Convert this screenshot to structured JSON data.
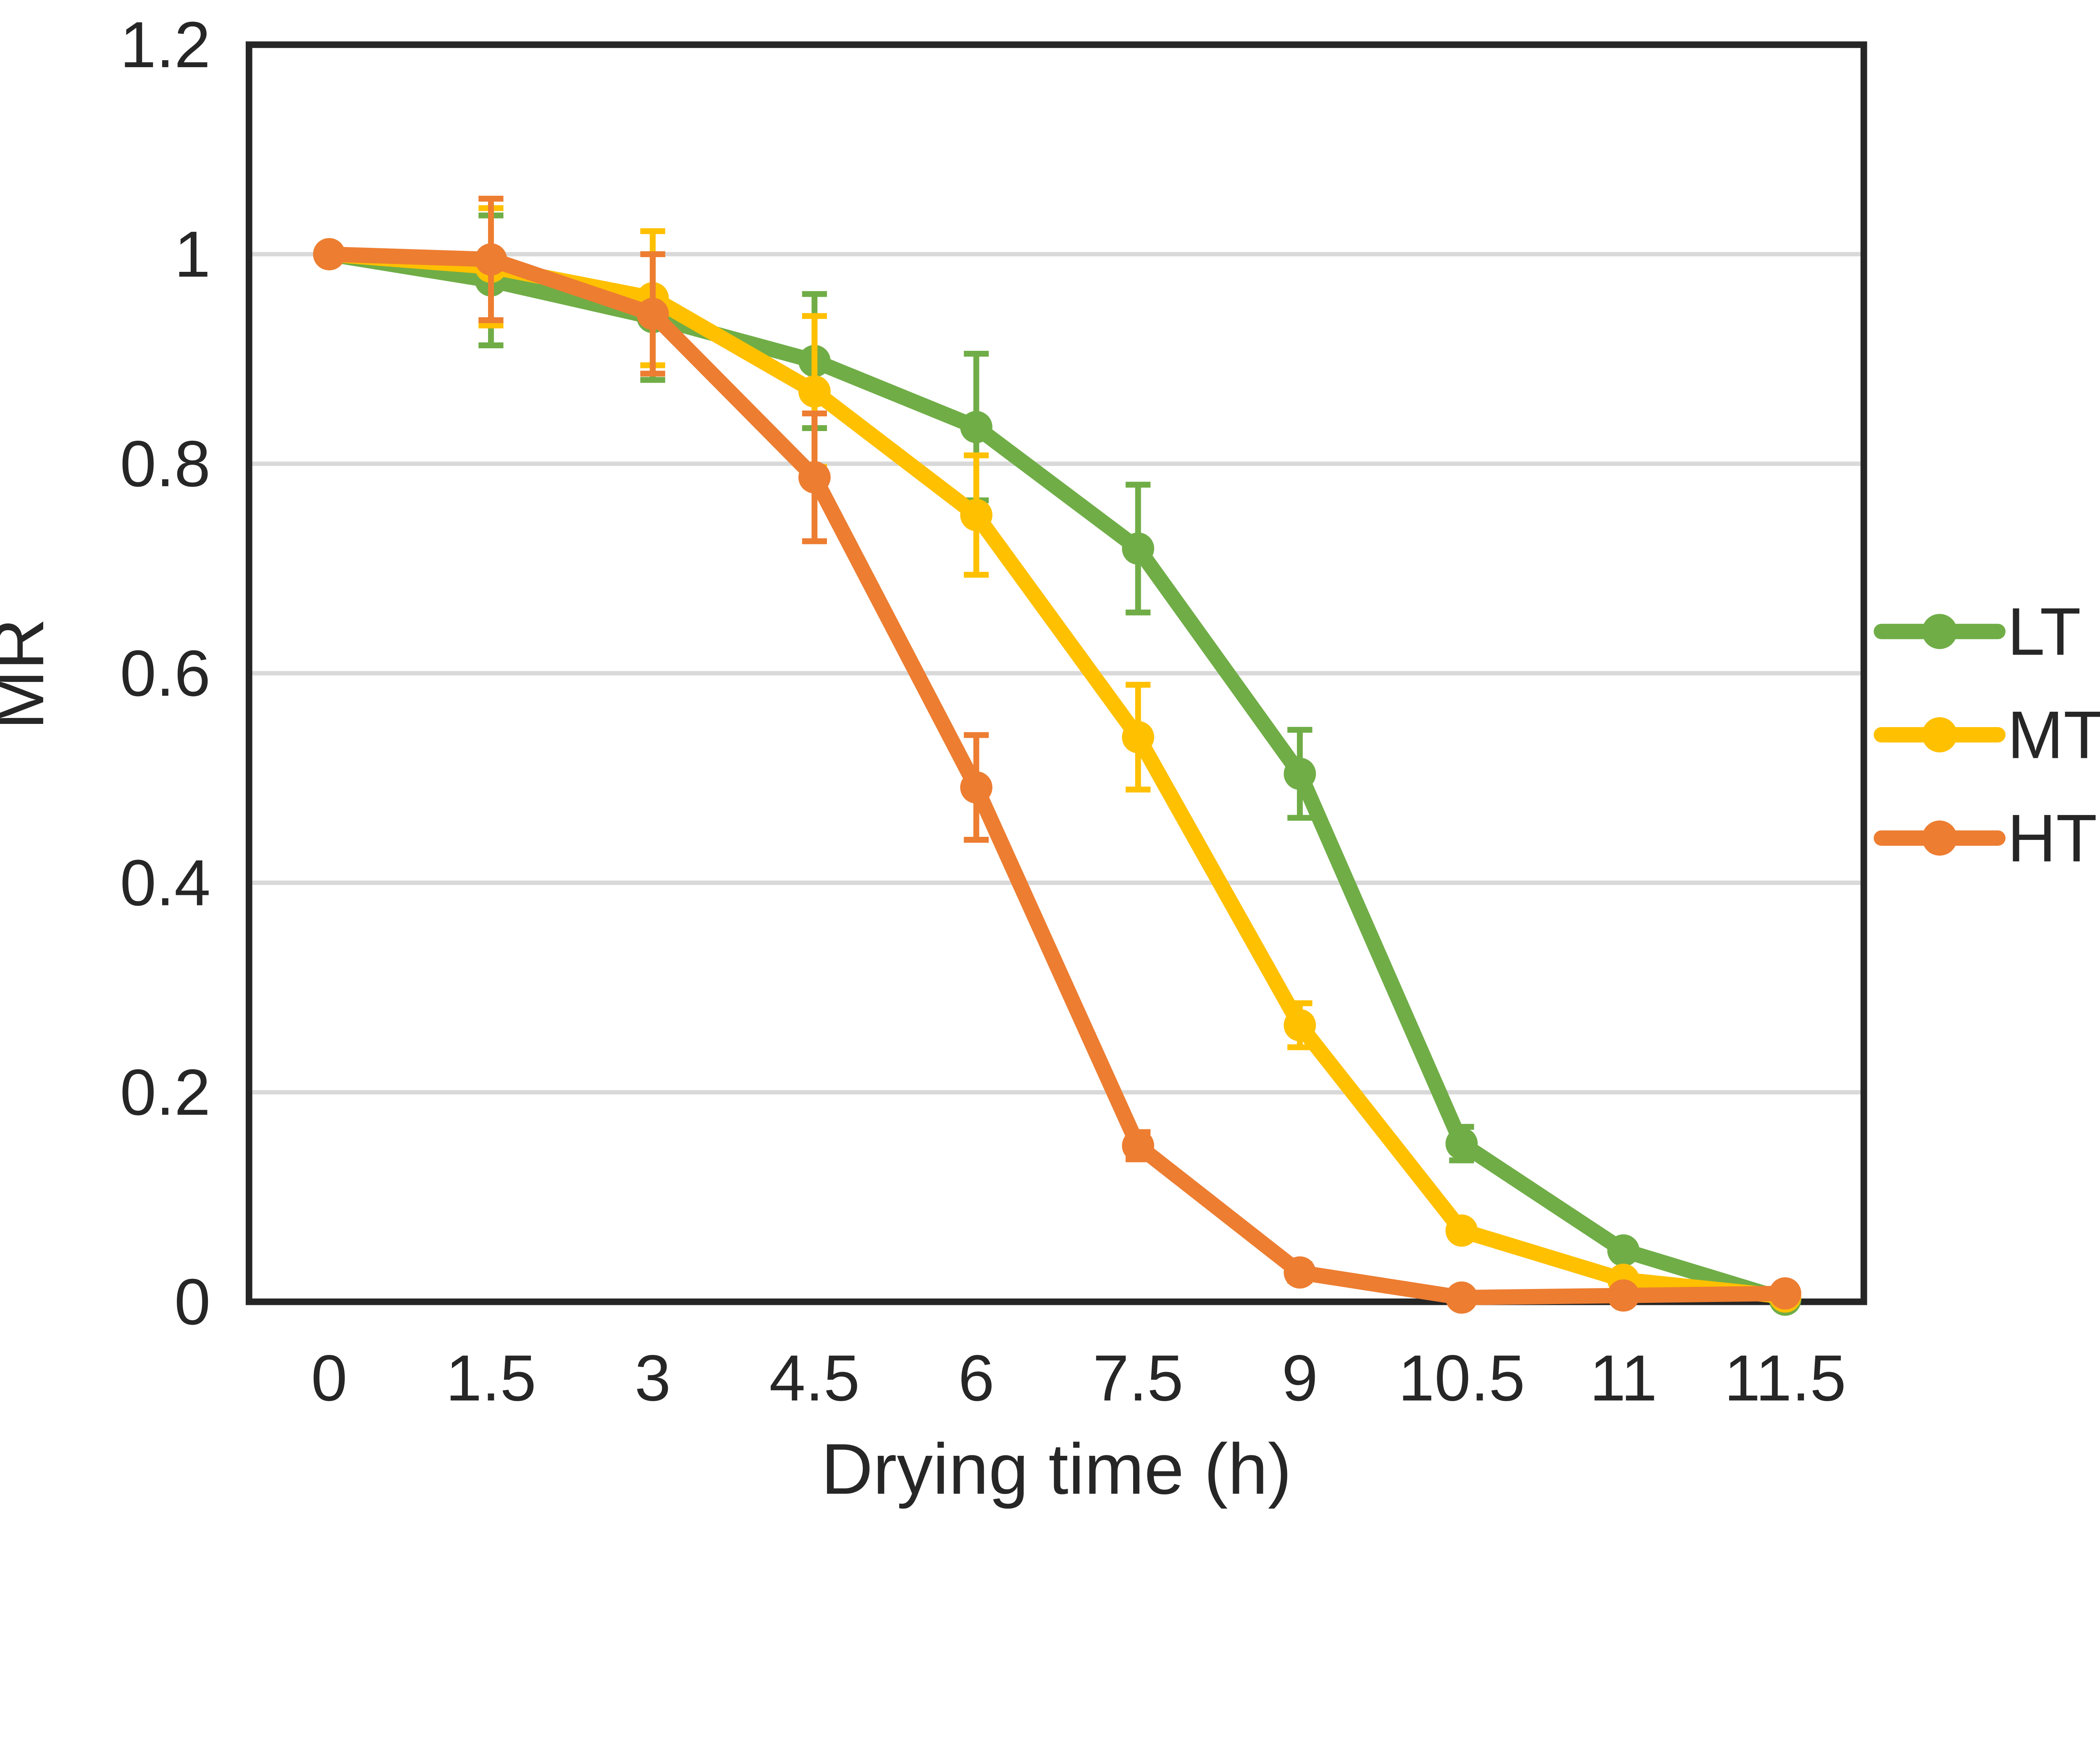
{
  "chart_data": {
    "type": "line",
    "title": "",
    "xlabel": "Drying time (h)",
    "ylabel": "MR",
    "categories": [
      "0",
      "1.5",
      "3",
      "4.5",
      "6",
      "7.5",
      "9",
      "10.5",
      "11",
      "11.5"
    ],
    "x_axis_type": "categorical-equal-spacing",
    "ylim": [
      0,
      1.2
    ],
    "y_ticks": [
      {
        "label": "0",
        "value": 0
      },
      {
        "label": "0.2",
        "value": 0.2
      },
      {
        "label": "0.4",
        "value": 0.4
      },
      {
        "label": "0.6",
        "value": 0.6
      },
      {
        "label": "0.8",
        "value": 0.8
      },
      {
        "label": "1",
        "value": 1.0
      },
      {
        "label": "1.2",
        "value": 1.2
      }
    ],
    "gridline_values": [
      0.2,
      0.4,
      0.6,
      0.8,
      1.0
    ],
    "grid_on": true,
    "grid_color": "#d9d9d9",
    "axis_color": "#262626",
    "series": [
      {
        "name": "LT",
        "color": "#70AD47",
        "marker": "circle",
        "values": [
          1.0,
          0.975,
          0.94,
          0.898,
          0.835,
          0.719,
          0.504,
          0.151,
          0.049,
          0.002
        ],
        "errors": [
          0.004,
          0.062,
          0.06,
          0.064,
          0.07,
          0.061,
          0.042,
          0.016,
          0.006,
          0.003
        ]
      },
      {
        "name": "MT",
        "color": "#FFC000",
        "marker": "circle",
        "values": [
          1.0,
          0.988,
          0.958,
          0.869,
          0.751,
          0.539,
          0.264,
          0.068,
          0.021,
          0.005
        ],
        "errors": [
          0.004,
          0.056,
          0.064,
          0.072,
          0.057,
          0.05,
          0.021,
          0.006,
          0.005,
          0.003
        ]
      },
      {
        "name": "HT",
        "color": "#ED7D31",
        "marker": "circle",
        "values": [
          1.0,
          0.995,
          0.943,
          0.787,
          0.491,
          0.149,
          0.028,
          0.004,
          0.006,
          0.008
        ],
        "errors": [
          0.004,
          0.058,
          0.057,
          0.061,
          0.05,
          0.013,
          0.008,
          0.004,
          0.004,
          0.005
        ]
      }
    ],
    "legend": {
      "position": "right",
      "labels": [
        "LT",
        "MT",
        "HT"
      ]
    }
  }
}
